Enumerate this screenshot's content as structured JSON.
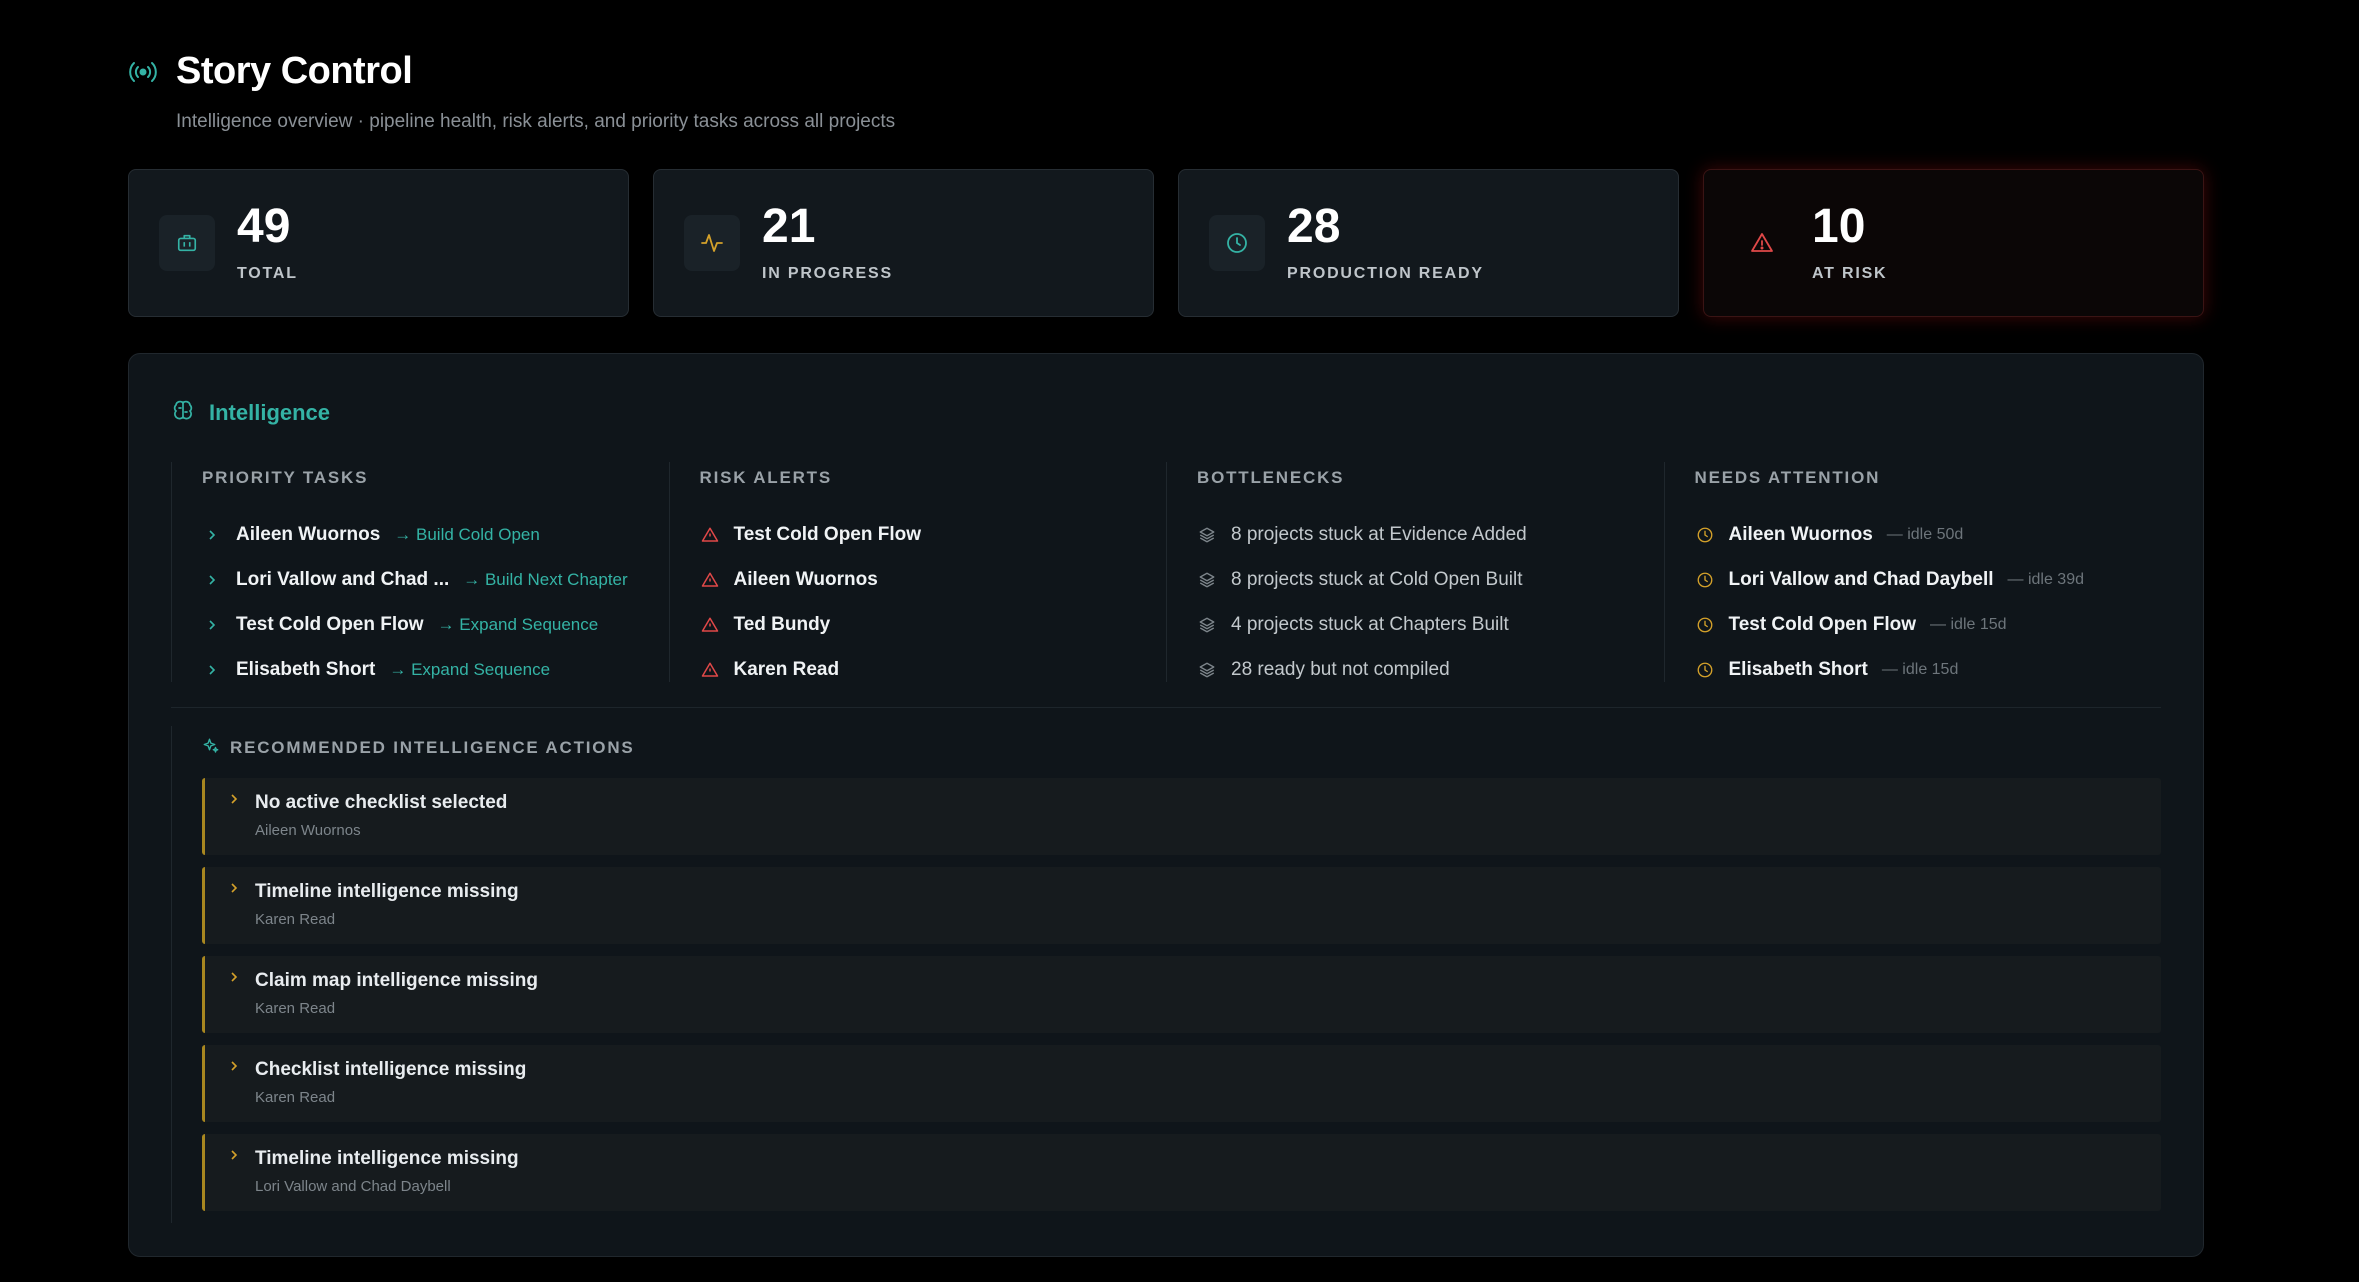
{
  "header": {
    "title": "Story Control",
    "subtitle": "Intelligence overview · pipeline health, risk alerts, and priority tasks across all projects",
    "icon": "broadcast-icon"
  },
  "stats": [
    {
      "value": "49",
      "label": "TOTAL",
      "icon": "briefcase-icon",
      "color": "#34b3a5"
    },
    {
      "value": "21",
      "label": "IN PROGRESS",
      "icon": "activity-icon",
      "color": "#d4a12a"
    },
    {
      "value": "28",
      "label": "PRODUCTION READY",
      "icon": "clock-icon",
      "color": "#34b3a5"
    },
    {
      "value": "10",
      "label": "AT RISK",
      "icon": "alert-triangle-icon",
      "color": "#e04848"
    }
  ],
  "intelligence": {
    "title": "Intelligence",
    "priority_tasks": {
      "title": "PRIORITY TASKS",
      "items": [
        {
          "name": "Aileen Wuornos",
          "action": "→ Build Cold Open"
        },
        {
          "name": "Lori Vallow and Chad ...",
          "action": "→ Build Next Chapter"
        },
        {
          "name": "Test Cold Open Flow",
          "action": "→ Expand Sequence"
        },
        {
          "name": "Elisabeth Short",
          "action": "→ Expand Sequence"
        }
      ]
    },
    "risk_alerts": {
      "title": "RISK ALERTS",
      "items": [
        "Test Cold Open Flow",
        "Aileen Wuornos",
        "Ted Bundy",
        "Karen Read"
      ]
    },
    "bottlenecks": {
      "title": "BOTTLENECKS",
      "items": [
        "8 projects stuck at Evidence Added",
        "8 projects stuck at Cold Open Built",
        "4 projects stuck at Chapters Built",
        "28 ready but not compiled"
      ]
    },
    "needs_attention": {
      "title": "NEEDS ATTENTION",
      "items": [
        {
          "name": "Aileen Wuornos",
          "idle": "— idle 50d"
        },
        {
          "name": "Lori Vallow and Chad Daybell",
          "idle": "— idle 39d"
        },
        {
          "name": "Test Cold Open Flow",
          "idle": "— idle 15d"
        },
        {
          "name": "Elisabeth Short",
          "idle": "— idle 15d"
        }
      ]
    }
  },
  "recommended": {
    "title": "RECOMMENDED INTELLIGENCE ACTIONS",
    "items": [
      {
        "title": "No active checklist selected",
        "project": "Aileen Wuornos"
      },
      {
        "title": "Timeline intelligence missing",
        "project": "Karen Read"
      },
      {
        "title": "Claim map intelligence missing",
        "project": "Karen Read"
      },
      {
        "title": "Checklist intelligence missing",
        "project": "Karen Read"
      },
      {
        "title": "Timeline intelligence missing",
        "project": "Lori Vallow and Chad Daybell"
      }
    ]
  },
  "colors": {
    "teal": "#34b3a5",
    "amber": "#d4a12a",
    "red": "#e04848"
  }
}
